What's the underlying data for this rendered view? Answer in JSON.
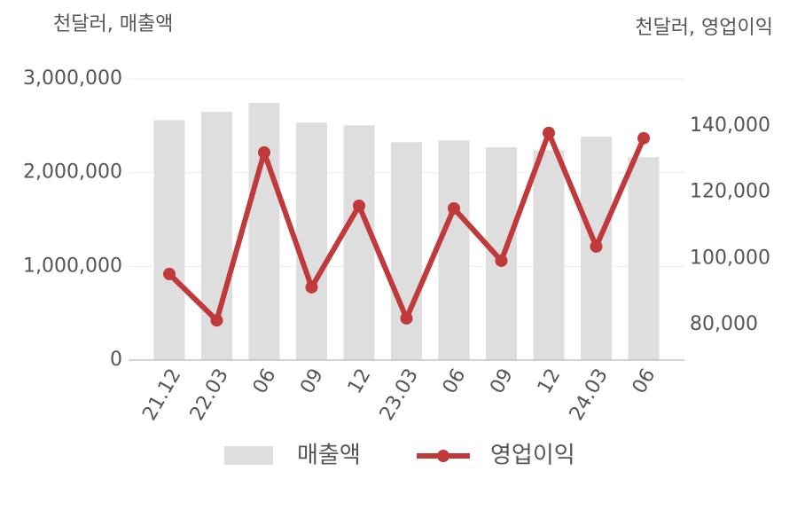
{
  "chart_data": {
    "type": "bar-line",
    "y_axis_label": "천달러, 매출액",
    "y2_axis_label": "천달러, 영업이익",
    "categories": [
      "21.12",
      "22.03",
      "06",
      "09",
      "12",
      "23.03",
      "06",
      "09",
      "12",
      "24.03",
      "06"
    ],
    "series": [
      {
        "name": "매출액",
        "type": "bar",
        "color": "#dedede",
        "values": [
          2560000,
          2650000,
          2745000,
          2535000,
          2505000,
          2325000,
          2345000,
          2270000,
          2240000,
          2385000,
          2165000
        ]
      },
      {
        "name": "영업이익",
        "type": "line",
        "axis": "y2",
        "color": "#c0393b",
        "values": [
          95300,
          81300,
          132000,
          91300,
          115900,
          81900,
          115100,
          99300,
          137900,
          103600,
          136300
        ]
      }
    ],
    "ylim": [
      0,
      3000000
    ],
    "yticks": [
      0,
      {
        "value": 1000000,
        "label": "1,000,000"
      },
      {
        "value": 2000000,
        "label": "2,000,000"
      },
      {
        "value": 3000000,
        "label": "3,000,000"
      }
    ],
    "y2lim": [
      69300,
      154200
    ],
    "y2ticks": [
      {
        "value": 80000,
        "label": "80,000"
      },
      {
        "value": 100000,
        "label": "100,000"
      },
      {
        "value": 120000,
        "label": "120,000"
      },
      {
        "value": 140000,
        "label": "140,000"
      }
    ],
    "grid": true
  }
}
